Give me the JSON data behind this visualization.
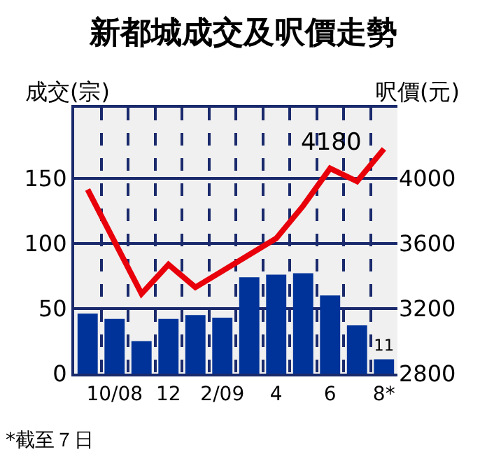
{
  "chart_data": {
    "type": "bar",
    "title": "新都城成交及呎價走勢",
    "ylabel": "成交(宗)",
    "y2label": "呎價(元)",
    "categories": [
      null,
      "10/08",
      null,
      "12",
      null,
      "2/09",
      null,
      "4",
      null,
      "6",
      null,
      "8*"
    ],
    "series": [
      {
        "color": "#003399",
        "values": [
          46,
          42,
          25,
          42,
          45,
          43,
          74,
          76,
          77,
          60,
          37,
          11
        ],
        "value_labels": [
          null,
          null,
          null,
          null,
          null,
          null,
          null,
          null,
          null,
          null,
          null,
          "11"
        ]
      },
      {
        "type": "line",
        "axis": "y2",
        "color": "#e8000b",
        "values": [
          3930,
          3610,
          3290,
          3470,
          3330,
          3430,
          3530,
          3630,
          3830,
          4060,
          3980,
          4180
        ],
        "value_labels": [
          null,
          null,
          null,
          null,
          null,
          null,
          null,
          null,
          null,
          null,
          null,
          "4180"
        ]
      }
    ],
    "ylim": [
      0,
      204
    ],
    "yticks": [
      0,
      50,
      100,
      150
    ],
    "y2lim": [
      2800,
      4432
    ],
    "y2ticks": [
      2800,
      3200,
      3600,
      4000
    ],
    "grid": true,
    "marker": "none",
    "line_style": "solid",
    "annotations": [
      "*截至７日"
    ]
  }
}
